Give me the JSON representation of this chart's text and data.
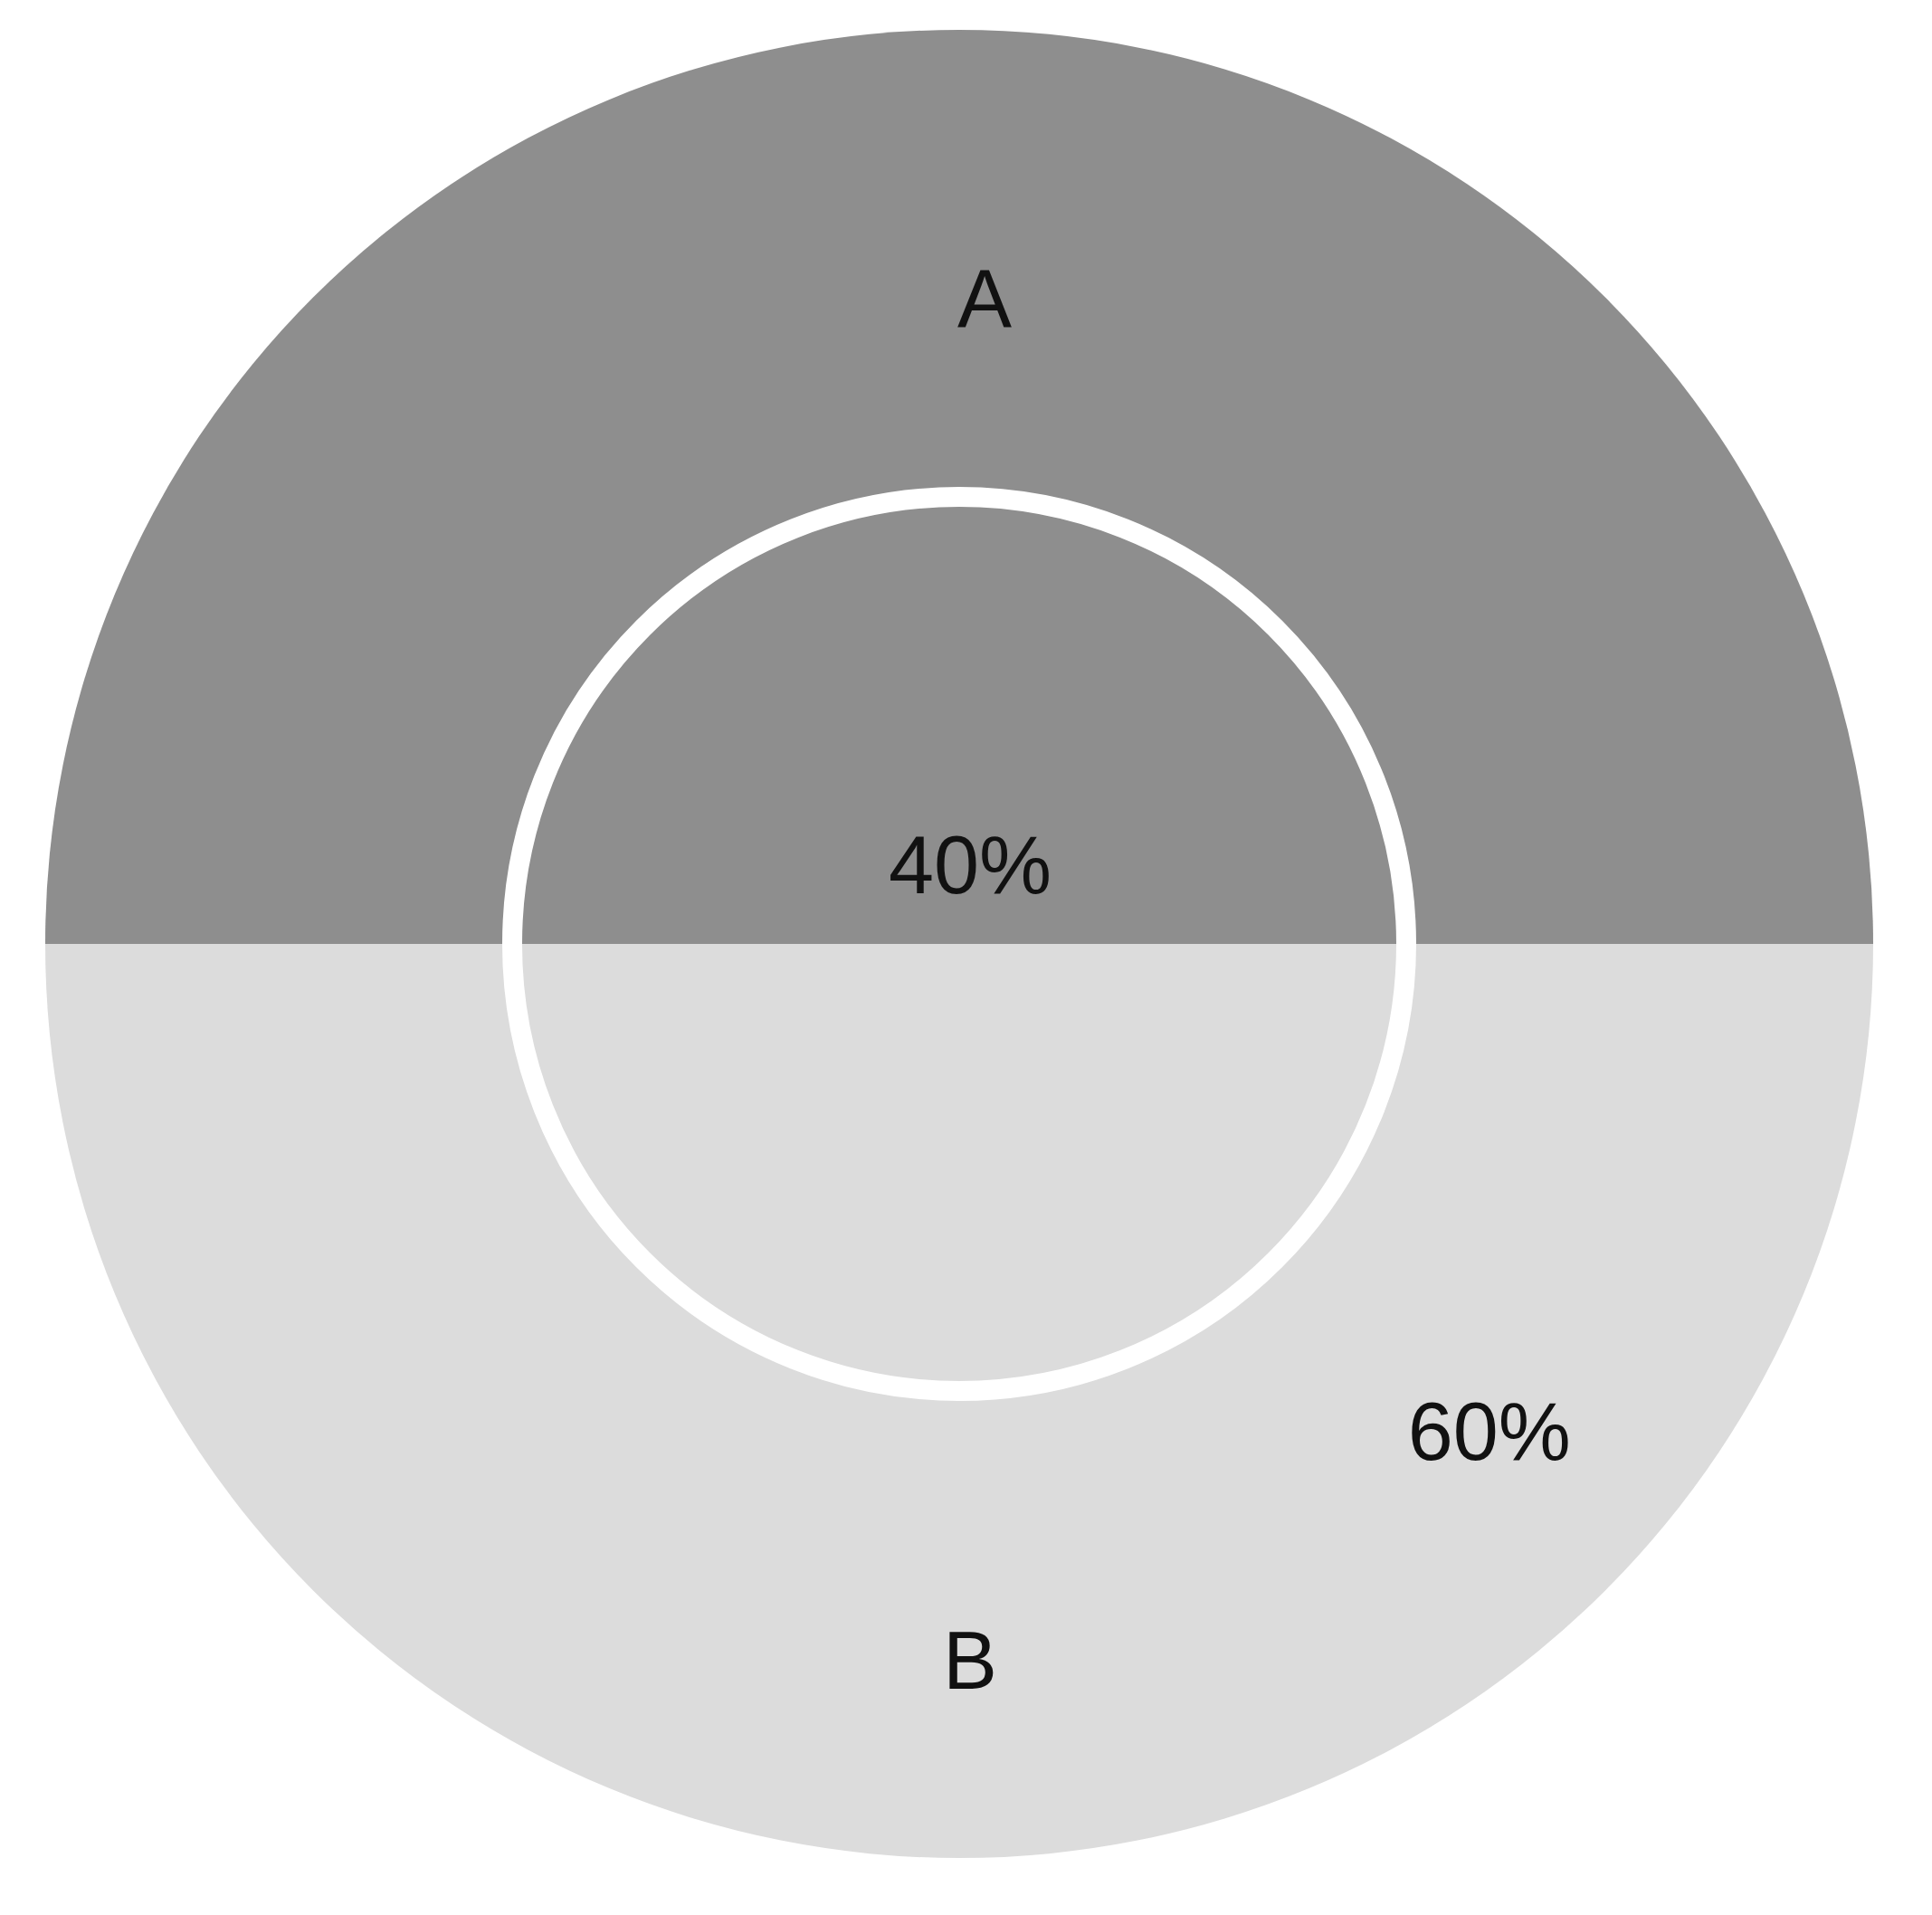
{
  "chart_data": {
    "type": "other",
    "categories": [
      "A",
      "B"
    ],
    "values": [
      40,
      60
    ],
    "value_labels": [
      "40%",
      "60%"
    ],
    "colors": [
      "#8e8e8e",
      "#dcdcdc"
    ]
  }
}
